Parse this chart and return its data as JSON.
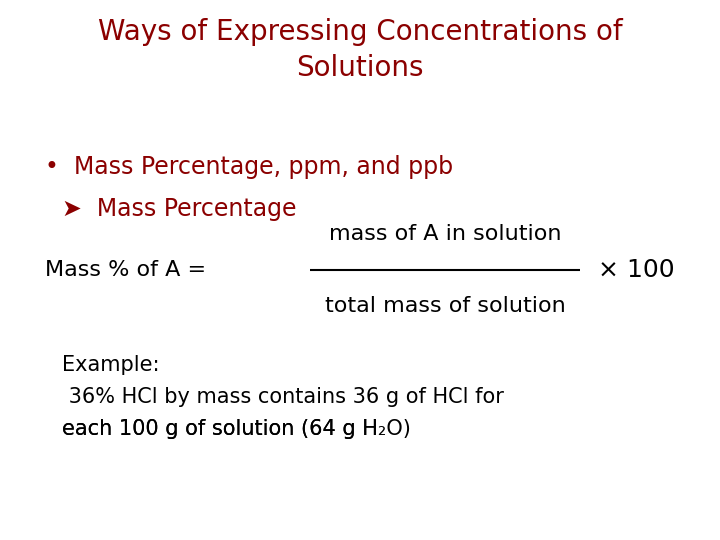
{
  "title_line1": "Ways of Expressing Concentrations of",
  "title_line2": "Solutions",
  "title_color": "#8B0000",
  "title_fontsize": 20,
  "bullet_text": "Mass Percentage, ppm, and ppb",
  "bullet_color": "#8B0000",
  "bullet_fontsize": 17,
  "arrow_text": "Mass Percentage",
  "arrow_color": "#8B0000",
  "arrow_fontsize": 17,
  "formula_left": "Mass % of A = ",
  "formula_numerator": "mass of A in solution",
  "formula_denominator": "total mass of solution",
  "formula_times100": "× 100",
  "formula_color": "#000000",
  "formula_fontsize": 16,
  "example_label": "Example:",
  "example_line1": " 36% HCl by mass contains 36 g of HCl for",
  "example_line2": "each 100 g of solution (64 g H",
  "example_line2b": "2",
  "example_line2c": "O)",
  "example_color": "#000000",
  "example_fontsize": 15,
  "background_color": "#ffffff"
}
